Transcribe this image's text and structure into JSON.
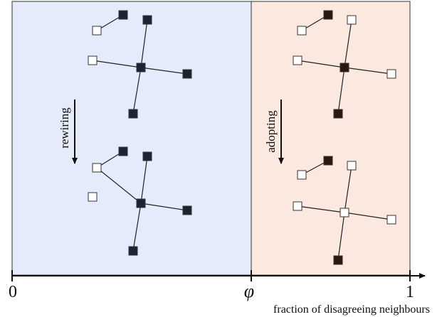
{
  "panels": {
    "left": {
      "label": "rewiring"
    },
    "right": {
      "label": "adopting"
    }
  },
  "axis": {
    "ticks": [
      "0",
      "φ",
      "1"
    ],
    "label": "fraction of disagreeing neighbours"
  }
}
